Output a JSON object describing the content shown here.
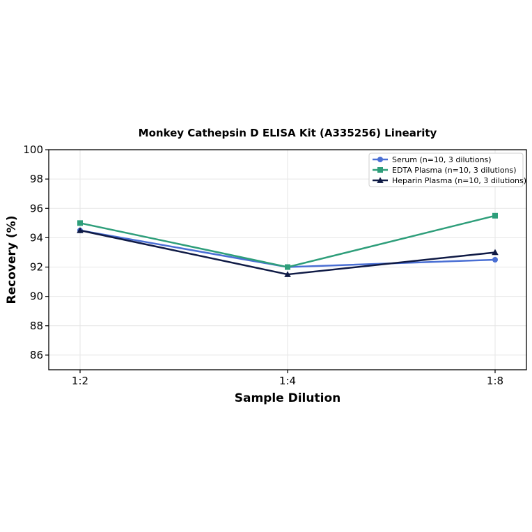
{
  "chart_data": {
    "type": "line",
    "title": "Monkey Cathepsin D ELISA Kit (A335256) Linearity",
    "xlabel": "Sample Dilution",
    "ylabel": "Recovery (%)",
    "categories": [
      "1:2",
      "1:4",
      "1:8"
    ],
    "ylim": [
      85,
      100
    ],
    "yticks": [
      86,
      88,
      90,
      92,
      94,
      96,
      98,
      100
    ],
    "grid": true,
    "legend_position": "top-right",
    "series": [
      {
        "name": "Serum (n=10, 3 dilutions)",
        "values": [
          94.5,
          92.0,
          92.5
        ],
        "color": "#4a6fd4",
        "marker": "circle"
      },
      {
        "name": "EDTA Plasma (n=10, 3 dilutions)",
        "values": [
          95.0,
          92.0,
          95.5
        ],
        "color": "#2e9e7a",
        "marker": "square"
      },
      {
        "name": "Heparin Plasma (n=10, 3 dilutions)",
        "values": [
          94.5,
          91.5,
          93.0
        ],
        "color": "#0f1a45",
        "marker": "triangle"
      }
    ]
  }
}
